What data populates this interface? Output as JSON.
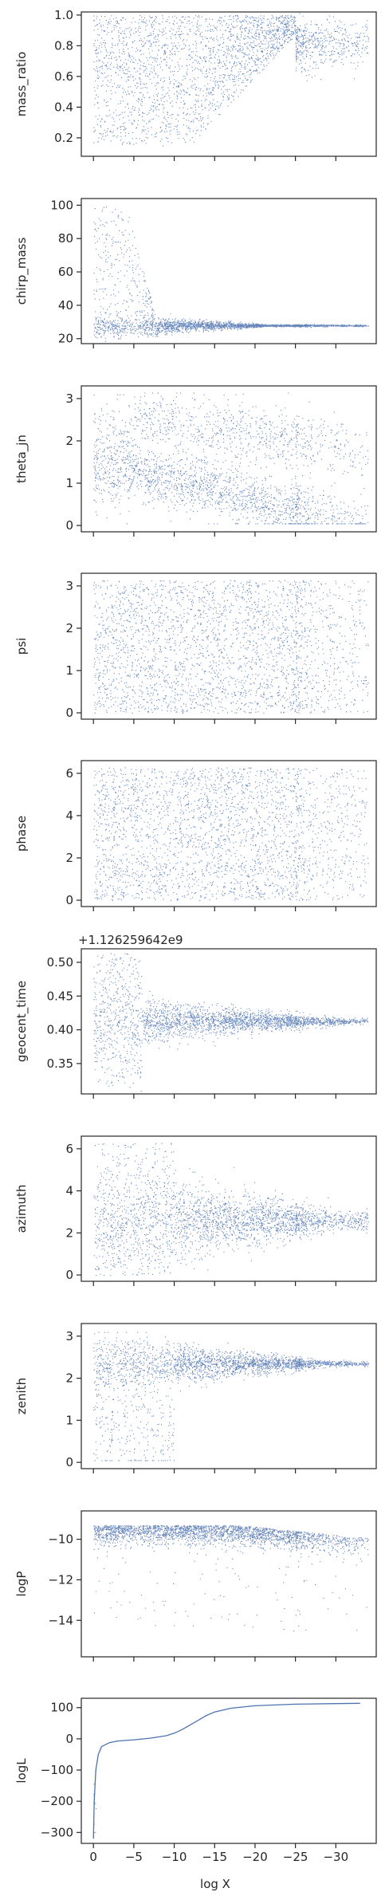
{
  "figure": {
    "xlabel": "log X",
    "x_ticks": [
      0,
      -5,
      -10,
      -15,
      -20,
      -25,
      -30
    ],
    "x_domain": [
      1.5,
      -35
    ],
    "point_color": "#4c72b0",
    "axis_color": "#262626"
  },
  "chart_data": [
    {
      "type": "scatter",
      "key": "mass_ratio",
      "ylabel": "mass_ratio",
      "ylim": [
        0.08,
        1.02
      ],
      "yticks": [
        0.2,
        0.4,
        0.6,
        0.8,
        1.0
      ],
      "tick_decimals": 1,
      "pattern": "mass",
      "y_offset_text": ""
    },
    {
      "type": "scatter",
      "key": "chirp_mass",
      "ylabel": "chirp_mass",
      "ylim": [
        17,
        104
      ],
      "yticks": [
        20,
        40,
        60,
        80,
        100
      ],
      "tick_decimals": 0,
      "pattern": "chirp",
      "y_offset_text": ""
    },
    {
      "type": "scatter",
      "key": "theta_jn",
      "ylabel": "theta_jn",
      "ylim": [
        -0.15,
        3.3
      ],
      "yticks": [
        0,
        1,
        2,
        3
      ],
      "tick_decimals": 0,
      "pattern": "theta",
      "y_offset_text": ""
    },
    {
      "type": "scatter",
      "key": "psi",
      "ylabel": "psi",
      "ylim": [
        -0.15,
        3.3
      ],
      "yticks": [
        0,
        1,
        2,
        3
      ],
      "tick_decimals": 0,
      "pattern": "uniform_pi",
      "y_offset_text": ""
    },
    {
      "type": "scatter",
      "key": "phase",
      "ylabel": "phase",
      "ylim": [
        -0.3,
        6.6
      ],
      "yticks": [
        0,
        2,
        4,
        6
      ],
      "tick_decimals": 0,
      "pattern": "uniform_2pi",
      "y_offset_text": ""
    },
    {
      "type": "scatter",
      "key": "geocent_time",
      "ylabel": "geocent_time",
      "ylim": [
        0.305,
        0.52
      ],
      "yticks": [
        0.35,
        0.4,
        0.45,
        0.5
      ],
      "tick_decimals": 2,
      "pattern": "geotime",
      "y_offset_text": "+1.126259642e9"
    },
    {
      "type": "scatter",
      "key": "azimuth",
      "ylabel": "azimuth",
      "ylim": [
        -0.3,
        6.6
      ],
      "yticks": [
        0,
        2,
        4,
        6
      ],
      "tick_decimals": 0,
      "pattern": "azimuth",
      "y_offset_text": ""
    },
    {
      "type": "scatter",
      "key": "zenith",
      "ylabel": "zenith",
      "ylim": [
        -0.15,
        3.3
      ],
      "yticks": [
        0,
        1,
        2,
        3
      ],
      "tick_decimals": 0,
      "pattern": "zenith",
      "y_offset_text": ""
    },
    {
      "type": "scatter",
      "key": "logP",
      "ylabel": "logP",
      "ylim": [
        -15.8,
        -8.6
      ],
      "yticks": [
        -10,
        -12,
        -14
      ],
      "tick_decimals": 0,
      "pattern": "logp",
      "y_offset_text": ""
    },
    {
      "type": "line",
      "key": "logL",
      "ylabel": "logL",
      "ylim": [
        -335,
        130
      ],
      "yticks": [
        100,
        0,
        -100,
        -200,
        -300
      ],
      "tick_decimals": 0,
      "pattern": "logl",
      "y_offset_text": "",
      "x": [
        0,
        -0.1,
        -0.3,
        -0.6,
        -1,
        -2,
        -3,
        -5,
        -7,
        -9,
        -10,
        -11,
        -12,
        -13,
        -14,
        -15,
        -17,
        -20,
        -25,
        -30,
        -33
      ],
      "y": [
        -320,
        -200,
        -100,
        -50,
        -25,
        -12,
        -7,
        -3,
        2,
        10,
        18,
        30,
        45,
        60,
        75,
        86,
        98,
        106,
        111,
        113,
        114
      ]
    }
  ]
}
